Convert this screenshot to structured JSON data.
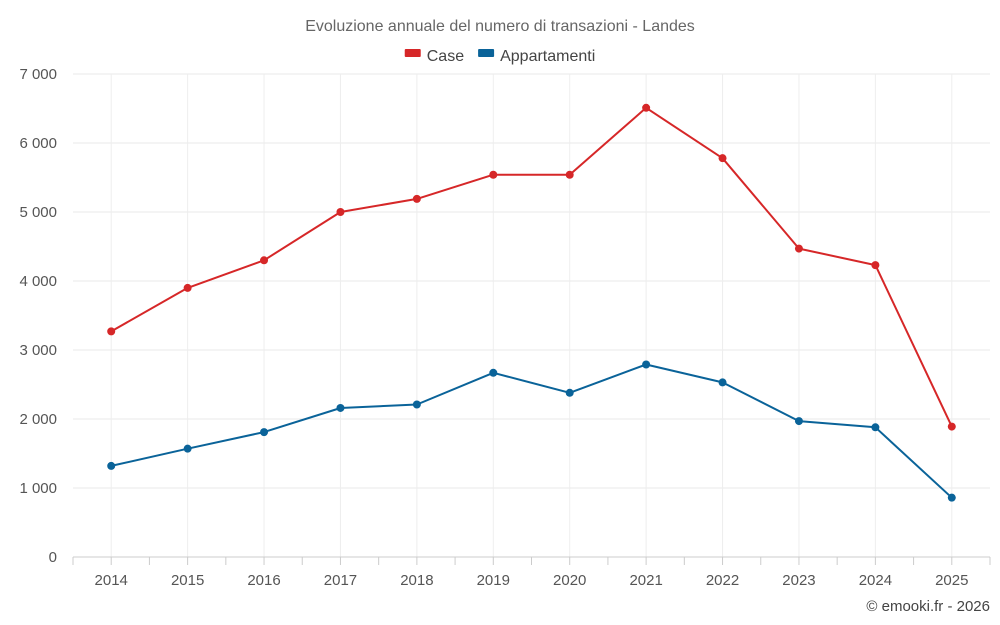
{
  "chart_data": {
    "type": "line",
    "title": "Evoluzione annuale del numero di transazioni - Landes",
    "categories": [
      "2014",
      "2015",
      "2016",
      "2017",
      "2018",
      "2019",
      "2020",
      "2021",
      "2022",
      "2023",
      "2024",
      "2025"
    ],
    "series": [
      {
        "name": "Case",
        "color": "#d62728",
        "values": [
          3270,
          3900,
          4300,
          5000,
          5190,
          5540,
          5540,
          6510,
          5780,
          4470,
          4230,
          1890
        ]
      },
      {
        "name": "Appartamenti",
        "color": "#0a6399",
        "values": [
          1320,
          1570,
          1810,
          2160,
          2210,
          2670,
          2380,
          2790,
          2530,
          1970,
          1880,
          860
        ]
      }
    ],
    "ylim": [
      0,
      7000
    ],
    "yticks": [
      0,
      1000,
      2000,
      3000,
      4000,
      5000,
      6000,
      7000
    ],
    "ytick_labels": [
      "0",
      "1 000",
      "2 000",
      "3 000",
      "4 000",
      "5 000",
      "6 000",
      "7 000"
    ],
    "xlabel": "",
    "ylabel": "",
    "legend_position": "top-center",
    "grid": true
  },
  "credit": "© emooki.fr - 2026"
}
